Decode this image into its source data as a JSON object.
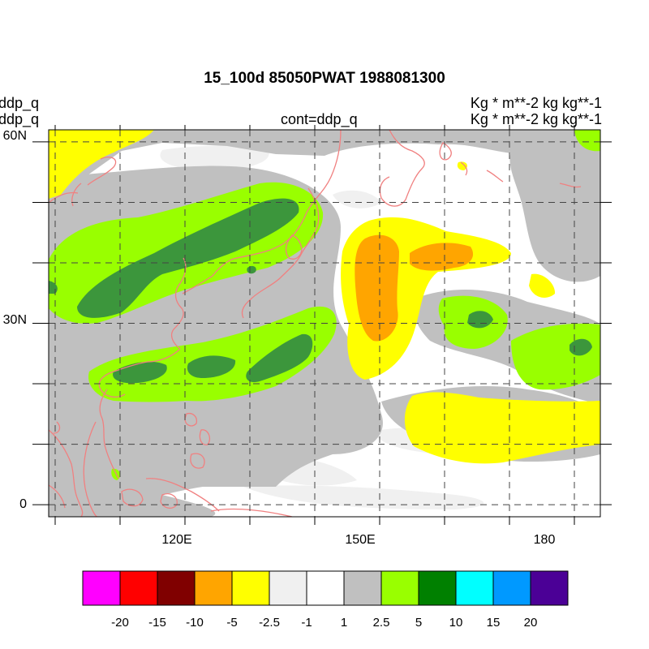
{
  "header": {
    "title": "15_100d 85050PWAT  1988081300",
    "left_line1": "ddp_q",
    "left_line2": "ddp_q",
    "center": "cont=ddp_q",
    "right_line1": "Kg  * m**-2 kg kg**-1",
    "right_line2": "Kg  * m**-2 kg kg**-1"
  },
  "map": {
    "lon_range": [
      102,
      187
    ],
    "lat_range": [
      -2,
      62
    ],
    "lat_labels": [
      {
        "value": 60,
        "text": "60N"
      },
      {
        "value": 30,
        "text": "30N"
      },
      {
        "value": 0,
        "text": "0"
      }
    ],
    "lon_labels": [
      {
        "value": 120,
        "text": "120E"
      },
      {
        "value": 150,
        "text": "150E"
      },
      {
        "value": 180,
        "text": "180"
      }
    ],
    "grid_lons": [
      103,
      113,
      123,
      133,
      143,
      153,
      163,
      173,
      183
    ],
    "grid_lats": [
      0,
      10,
      20,
      30,
      40,
      50,
      60
    ],
    "coastline_color": "#f08080"
  },
  "colorbar": {
    "colors": [
      "#ff00ff",
      "#ff0000",
      "#800000",
      "#ffa500",
      "#ffff00",
      "#f0f0f0",
      "#ffffff",
      "#c0c0c0",
      "#99ff00",
      "#008000",
      "#00ffff",
      "#0099ff",
      "#4b0096"
    ],
    "labels": [
      "-20",
      "-15",
      "-10",
      "-5",
      "-2.5",
      "-1",
      "1",
      "2.5",
      "5",
      "10",
      "15",
      "20"
    ]
  }
}
